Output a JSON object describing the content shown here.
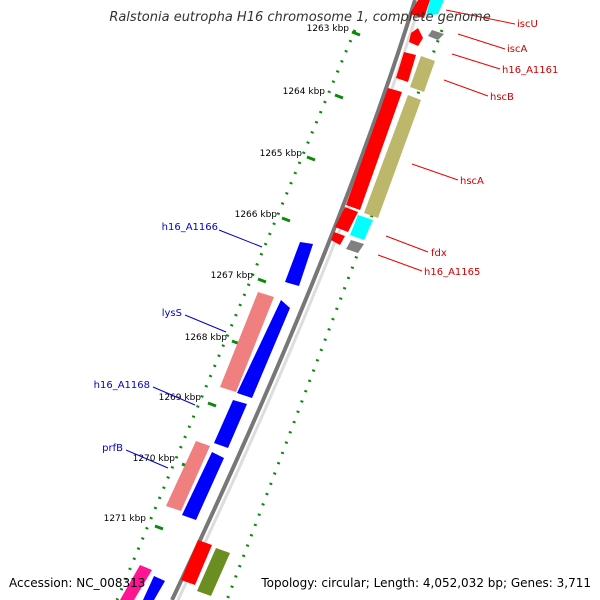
{
  "title": "Ralstonia eutropha H16 chromosome 1, complete genome",
  "accession": "Accession: NC_008313",
  "topology": "Topology: circular; Length: 4,052,032 bp; Genes: 3,711",
  "ticks": [
    "1263 kbp",
    "1264 kbp",
    "1265 kbp",
    "1266 kbp",
    "1267 kbp",
    "1268 kbp",
    "1269 kbp",
    "1270 kbp",
    "1271 kbp"
  ],
  "genes": {
    "iscU": "iscU",
    "iscA": "iscA",
    "h16_A1161": "h16_A1161",
    "hscB": "hscB",
    "hscA": "hscA",
    "fdx": "fdx",
    "h16_A1165": "h16_A1165",
    "h16_A1166": "h16_A1166",
    "lysS": "lysS",
    "h16_A1168": "h16_A1168",
    "prfB": "prfB"
  },
  "colors": {
    "backbone": "#808080",
    "forward_cds": "#ff0000",
    "reverse_cds": "#0000ff",
    "rna": "#f08080",
    "hypothetical": "#bdb76b",
    "other": "#00ffff",
    "dot_green": "#008000",
    "label_red": "#cc0000",
    "label_blue": "#0000cc"
  }
}
